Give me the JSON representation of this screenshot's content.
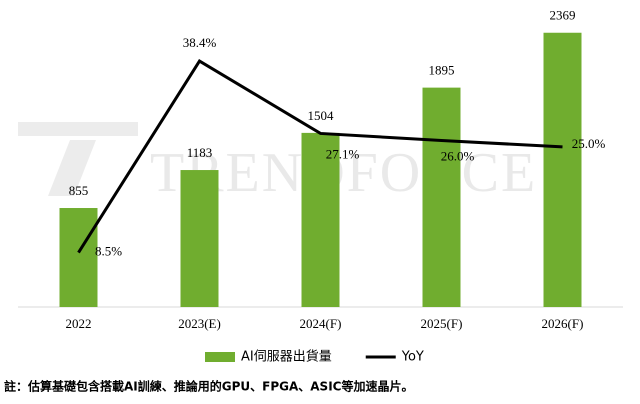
{
  "chart_data": {
    "type": "bar_line",
    "watermark": "TRENDFORCE",
    "categories": [
      "2022",
      "2023(E)",
      "2024(F)",
      "2025(F)",
      "2026(F)"
    ],
    "series": [
      {
        "name": "AI伺服器出貨量",
        "type": "bar",
        "color": "#70ad2f",
        "values": [
          855,
          1183,
          1504,
          1895,
          2369
        ]
      },
      {
        "name": "YoY",
        "type": "line",
        "axis": "y2",
        "color": "#000000",
        "values": [
          8.5,
          38.4,
          27.1,
          26.0,
          25.0
        ],
        "value_labels": [
          "8.5%",
          "38.4%",
          "27.1%",
          "26.0%",
          "25.0%"
        ]
      }
    ],
    "ylim": [
      0,
      2600
    ],
    "y2lim": [
      0,
      47
    ],
    "grid": false,
    "legend": "bottom",
    "note": "註：估算基礎包含搭載AI訓練、推論用的GPU、FPGA、ASIC等加速晶片。"
  }
}
